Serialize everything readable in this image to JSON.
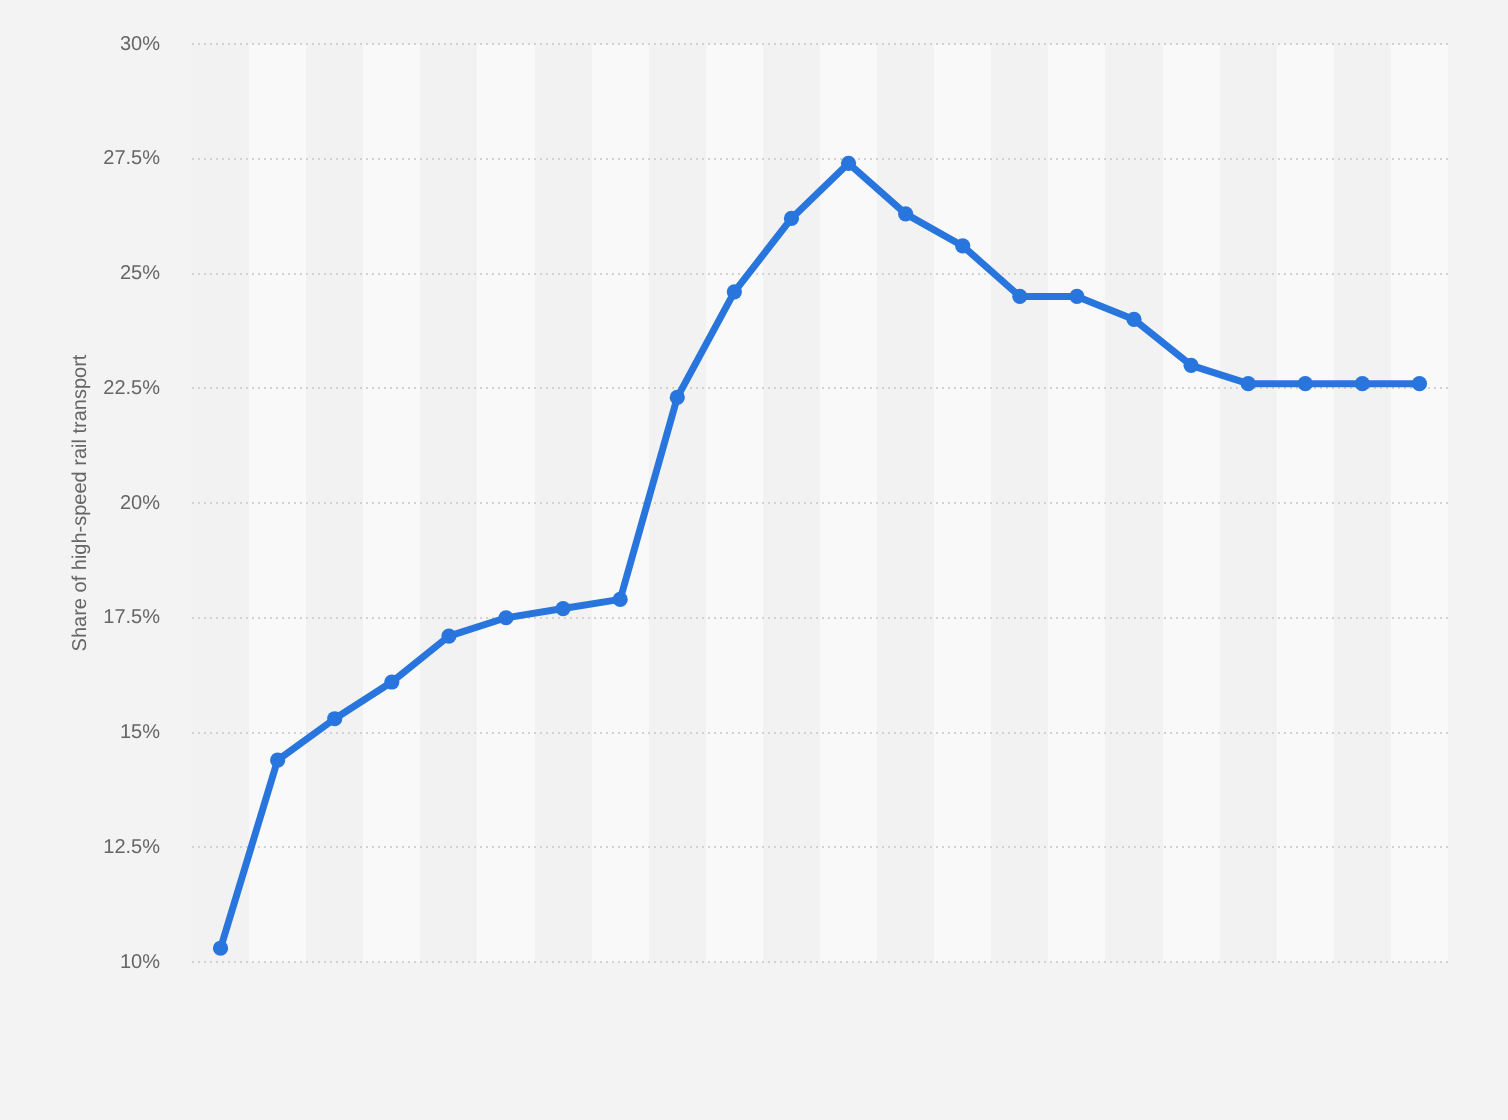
{
  "chart_data": {
    "type": "line",
    "ylabel": "Share of high-speed rail transport",
    "categories": [
      null,
      null,
      null,
      null,
      null,
      null,
      null,
      null,
      null,
      null,
      null,
      null,
      null,
      null,
      null,
      null,
      null,
      null,
      null,
      null,
      null,
      null
    ],
    "values": [
      10.3,
      14.4,
      15.3,
      16.1,
      17.1,
      17.5,
      17.7,
      17.9,
      22.3,
      24.6,
      26.2,
      27.4,
      26.3,
      25.6,
      24.5,
      24.5,
      24.0,
      23.0,
      22.6,
      22.6,
      22.6,
      22.6
    ],
    "color": "#2876dd",
    "ylim": [
      10,
      30
    ],
    "yticks": [
      {
        "value": 10,
        "label": "10%"
      },
      {
        "value": 12.5,
        "label": "12.5%"
      },
      {
        "value": 15,
        "label": "15%"
      },
      {
        "value": 17.5,
        "label": "17.5%"
      },
      {
        "value": 20,
        "label": "20%"
      },
      {
        "value": 22.5,
        "label": "22.5%"
      },
      {
        "value": 25,
        "label": "25%"
      },
      {
        "value": 27.5,
        "label": "27.5%"
      },
      {
        "value": 30,
        "label": "30%"
      }
    ],
    "grid": "y",
    "tick_labels": "y",
    "marker": "circle",
    "line_style": "solid"
  }
}
